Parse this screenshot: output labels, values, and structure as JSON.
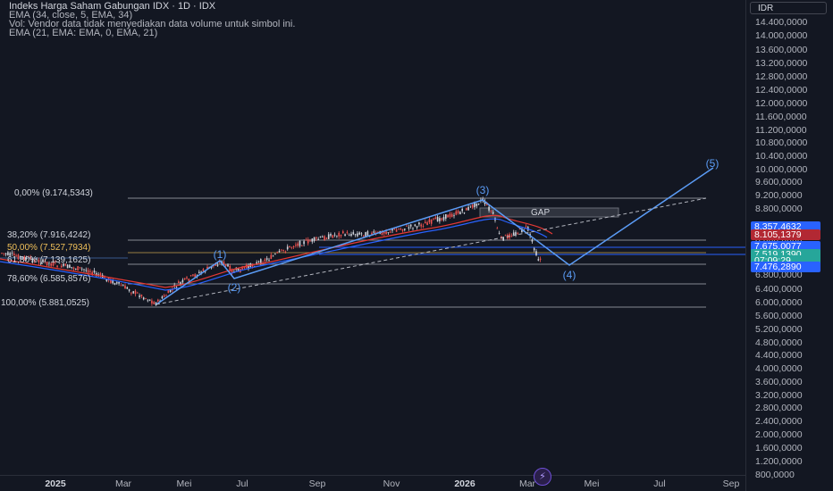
{
  "legend": {
    "title": "Indeks Harga Saham Gabungan IDX · 1D · IDX",
    "line1": "EMA (34, close, 5, EMA, 34)",
    "line2": "Vol: Vendor data tidak menyediakan data volume untuk simbol ini.",
    "line3": "EMA (21, EMA: EMA, 0, EMA, 21)"
  },
  "price_axis": {
    "currency": "IDR",
    "ticks": [
      "14.400,0000",
      "14.000,0000",
      "13.600,0000",
      "13.200,0000",
      "12.800,0000",
      "12.400,0000",
      "12.000,0000",
      "11.600,0000",
      "11.200,0000",
      "10.800,0000",
      "10.400,0000",
      "10.000,0000",
      "9.600,0000",
      "9.200,0000",
      "8.800,0000",
      "8.000,0000",
      "6.800,0000",
      "6.400,0000",
      "6.000,0000",
      "5.600,0000",
      "5.200,0000",
      "4.800,0000",
      "4.400,0000",
      "4.000,0000",
      "3.600,0000",
      "3.200,0000",
      "2.800,0000",
      "2.400,0000",
      "2.000,0000",
      "1.600,0000",
      "1.200,0000",
      "800,0000"
    ],
    "labels": [
      {
        "text": "8.357,4632",
        "color": "#2962ff"
      },
      {
        "text": "8.105,1379",
        "color": "#b22833"
      },
      {
        "text": "7.675,0077",
        "color": "#2962ff"
      },
      {
        "text": "7.519,1390",
        "color": "#26a69a"
      },
      {
        "text": "07:09:29",
        "color": "#26a69a"
      },
      {
        "text": "7.476,2890",
        "color": "#2962ff"
      }
    ]
  },
  "time_axis": {
    "ticks": [
      {
        "label": "2025",
        "bold": true
      },
      {
        "label": "Mar",
        "bold": false
      },
      {
        "label": "Mei",
        "bold": false
      },
      {
        "label": "Jul",
        "bold": false
      },
      {
        "label": "Sep",
        "bold": false
      },
      {
        "label": "Nov",
        "bold": false
      },
      {
        "label": "2026",
        "bold": true
      },
      {
        "label": "Mar",
        "bold": false
      },
      {
        "label": "Mei",
        "bold": false
      },
      {
        "label": "Jul",
        "bold": false
      },
      {
        "label": "Sep",
        "bold": false
      }
    ]
  },
  "fib": [
    {
      "label": "0,00% (9.174,5343)",
      "color": "#d1d4dc"
    },
    {
      "label": "38,20% (7.916,4242)",
      "color": "#d1d4dc"
    },
    {
      "label": "50,00% (7.527,7934)",
      "color": "#f0c05a"
    },
    {
      "label": "61,80% (7.139,1625)",
      "color": "#d1d4dc"
    },
    {
      "label": "78,60% (6.585,8576)",
      "color": "#d1d4dc"
    },
    {
      "label": "100,00% (5.881,0525)",
      "color": "#d1d4dc"
    }
  ],
  "waves": [
    "(1)",
    "(2)",
    "(3)",
    "(4)",
    "(5)"
  ],
  "gap_label": "GAP",
  "colors": {
    "background": "#131722",
    "wave_line": "#5b9cf6",
    "ema_red": "#e53935",
    "ema_blue": "#2962ff",
    "candle_up": "#d1d4dc",
    "candle_down": "#ef5350"
  },
  "chart_data": {
    "type": "candlestick",
    "symbol": "Indeks Harga Saham Gabungan IDX",
    "interval": "1D",
    "approx_closes": [
      7100,
      6800,
      6300,
      5967,
      6400,
      6900,
      7000,
      6800,
      6950,
      7200,
      7600,
      7900,
      7850,
      8000,
      8100,
      8300,
      8600,
      9000,
      9174,
      8800,
      8200,
      8050,
      8300,
      7800,
      7476
    ]
  }
}
